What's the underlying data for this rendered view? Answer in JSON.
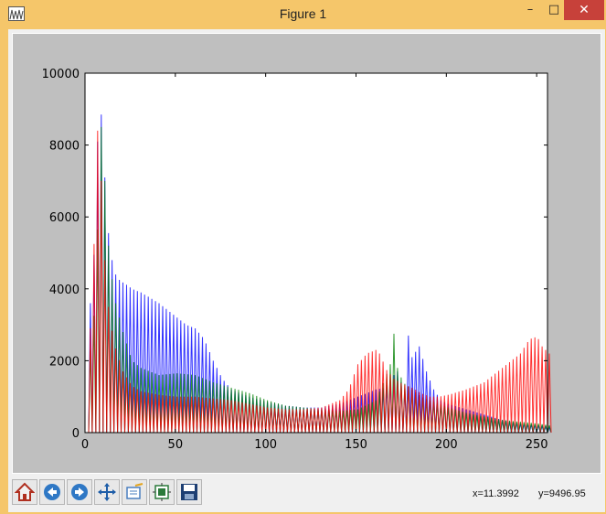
{
  "window": {
    "title": "Figure 1",
    "minimize_glyph": "–",
    "maximize_glyph": "□",
    "close_glyph": "✕"
  },
  "toolbar": {
    "buttons": [
      "home-icon",
      "back-arrow-icon",
      "forward-arrow-icon",
      "pan-move-icon",
      "zoom-rect-icon",
      "subplot-config-icon",
      "save-floppy-icon"
    ],
    "coord_x": "x=11.3992",
    "coord_y": "y=9496.95"
  },
  "chart_data": {
    "type": "line",
    "title": "",
    "xlabel": "",
    "ylabel": "",
    "xlim": [
      0,
      256
    ],
    "ylim": [
      0,
      10000
    ],
    "x_ticks": [
      0,
      50,
      100,
      150,
      200,
      250
    ],
    "y_ticks": [
      0,
      2000,
      4000,
      6000,
      8000,
      10000
    ],
    "grid": false,
    "series": [
      {
        "color": "#0000ff",
        "points": [
          [
            0,
            0
          ],
          [
            1,
            4000
          ],
          [
            3,
            3200
          ],
          [
            5,
            6700
          ],
          [
            7,
            9500
          ],
          [
            9,
            8200
          ],
          [
            11,
            6000
          ],
          [
            13,
            5100
          ],
          [
            15,
            4500
          ],
          [
            17,
            4300
          ],
          [
            19,
            4200
          ],
          [
            21,
            4150
          ],
          [
            25,
            4000
          ],
          [
            30,
            3900
          ],
          [
            35,
            3750
          ],
          [
            40,
            3600
          ],
          [
            45,
            3400
          ],
          [
            50,
            3200
          ],
          [
            55,
            3000
          ],
          [
            60,
            2900
          ],
          [
            65,
            2600
          ],
          [
            70,
            2000
          ],
          [
            75,
            1500
          ],
          [
            80,
            1200
          ],
          [
            90,
            1000
          ],
          [
            100,
            850
          ],
          [
            110,
            750
          ],
          [
            120,
            700
          ],
          [
            130,
            700
          ],
          [
            140,
            800
          ],
          [
            150,
            1000
          ],
          [
            160,
            1200
          ],
          [
            165,
            1250
          ],
          [
            170,
            1600
          ],
          [
            172,
            1700
          ],
          [
            174,
            1400
          ],
          [
            176,
            1200
          ],
          [
            178,
            2700
          ],
          [
            180,
            2100
          ],
          [
            184,
            2400
          ],
          [
            188,
            1700
          ],
          [
            192,
            1200
          ],
          [
            196,
            900
          ],
          [
            200,
            800
          ],
          [
            210,
            650
          ],
          [
            220,
            500
          ],
          [
            230,
            350
          ],
          [
            240,
            250
          ],
          [
            250,
            200
          ],
          [
            256,
            150
          ]
        ]
      },
      {
        "color": "#008000",
        "points": [
          [
            0,
            0
          ],
          [
            1,
            2600
          ],
          [
            3,
            2000
          ],
          [
            5,
            4500
          ],
          [
            7,
            6800
          ],
          [
            8,
            8500
          ],
          [
            10,
            7000
          ],
          [
            12,
            5200
          ],
          [
            15,
            3800
          ],
          [
            20,
            2800
          ],
          [
            25,
            2000
          ],
          [
            30,
            1800
          ],
          [
            40,
            1600
          ],
          [
            50,
            1650
          ],
          [
            60,
            1600
          ],
          [
            65,
            1500
          ],
          [
            70,
            1400
          ],
          [
            80,
            1250
          ],
          [
            90,
            1100
          ],
          [
            100,
            900
          ],
          [
            110,
            750
          ],
          [
            120,
            700
          ],
          [
            130,
            650
          ],
          [
            140,
            600
          ],
          [
            150,
            650
          ],
          [
            160,
            900
          ],
          [
            165,
            1500
          ],
          [
            168,
            1900
          ],
          [
            170,
            2750
          ],
          [
            172,
            1800
          ],
          [
            175,
            1400
          ],
          [
            180,
            1200
          ],
          [
            185,
            1000
          ],
          [
            190,
            900
          ],
          [
            200,
            700
          ],
          [
            210,
            550
          ],
          [
            220,
            450
          ],
          [
            230,
            350
          ],
          [
            240,
            300
          ],
          [
            250,
            250
          ],
          [
            256,
            200
          ]
        ]
      },
      {
        "color": "#ff0000",
        "points": [
          [
            0,
            0
          ],
          [
            1,
            3000
          ],
          [
            3,
            2800
          ],
          [
            5,
            7700
          ],
          [
            6,
            8400
          ],
          [
            8,
            7000
          ],
          [
            10,
            4800
          ],
          [
            12,
            3500
          ],
          [
            15,
            2500
          ],
          [
            20,
            1700
          ],
          [
            25,
            1300
          ],
          [
            30,
            1150
          ],
          [
            40,
            1050
          ],
          [
            50,
            1000
          ],
          [
            60,
            1000
          ],
          [
            70,
            950
          ],
          [
            80,
            900
          ],
          [
            90,
            800
          ],
          [
            100,
            700
          ],
          [
            110,
            650
          ],
          [
            120,
            650
          ],
          [
            130,
            700
          ],
          [
            140,
            900
          ],
          [
            145,
            1200
          ],
          [
            150,
            1900
          ],
          [
            155,
            2200
          ],
          [
            160,
            2300
          ],
          [
            163,
            2150
          ],
          [
            165,
            1800
          ],
          [
            170,
            1500
          ],
          [
            175,
            1350
          ],
          [
            180,
            1250
          ],
          [
            185,
            1100
          ],
          [
            190,
            1000
          ],
          [
            195,
            1000
          ],
          [
            200,
            1050
          ],
          [
            210,
            1200
          ],
          [
            220,
            1400
          ],
          [
            230,
            1800
          ],
          [
            240,
            2200
          ],
          [
            245,
            2600
          ],
          [
            248,
            2650
          ],
          [
            250,
            2600
          ],
          [
            252,
            2400
          ],
          [
            254,
            2300
          ],
          [
            256,
            2200
          ]
        ]
      }
    ]
  }
}
